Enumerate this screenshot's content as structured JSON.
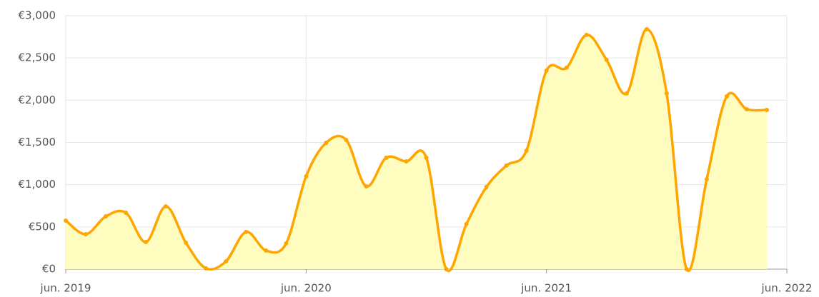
{
  "chart_data": {
    "type": "area",
    "x": [
      0,
      1,
      2,
      3,
      4,
      5,
      6,
      7,
      8,
      9,
      10,
      11,
      12,
      13,
      14,
      15,
      16,
      17,
      18,
      19,
      20,
      21,
      22,
      23,
      24,
      25,
      26,
      27,
      28,
      29,
      30,
      31,
      32,
      33,
      34,
      35
    ],
    "values": [
      575,
      414,
      625,
      668,
      321,
      744,
      313,
      10,
      93,
      440,
      220,
      304,
      1099,
      1496,
      1530,
      980,
      1319,
      1276,
      1319,
      0,
      533,
      972,
      1226,
      1403,
      2350,
      2384,
      2773,
      2477,
      2080,
      2840,
      2080,
      0,
      1065,
      2046,
      1893,
      1885
    ],
    "color": "#ffa500",
    "fill": "#fffcbf",
    "xlim": [
      0,
      36
    ],
    "xticks": [
      {
        "value": 0,
        "label": "jun. 2019"
      },
      {
        "value": 12,
        "label": "jun. 2020"
      },
      {
        "value": 24,
        "label": "jun. 2021"
      },
      {
        "value": 36,
        "label": "jun. 2022"
      }
    ],
    "ylim": [
      0,
      3000
    ],
    "yticks": [
      {
        "value": 0,
        "label": "€0"
      },
      {
        "value": 500,
        "label": "€500"
      },
      {
        "value": 1000,
        "label": "€1,000"
      },
      {
        "value": 1500,
        "label": "€1,500"
      },
      {
        "value": 2000,
        "label": "€2,000"
      },
      {
        "value": 2500,
        "label": "€2,500"
      },
      {
        "value": 3000,
        "label": "€3,000"
      }
    ],
    "grid": true
  }
}
